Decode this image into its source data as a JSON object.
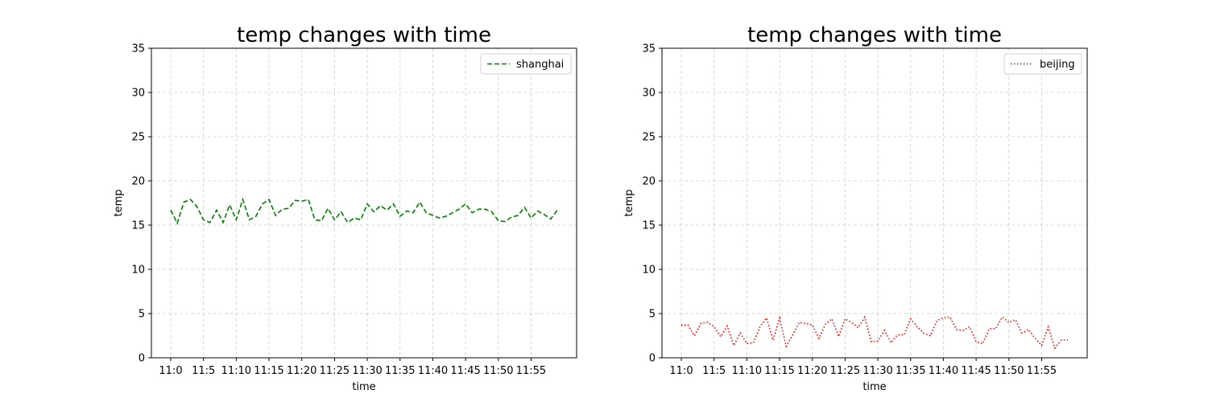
{
  "chart_data": [
    {
      "type": "line",
      "title": "temp changes with time",
      "xlabel": "time",
      "ylabel": "temp",
      "ylim": [
        0,
        35
      ],
      "y_ticks": [
        0,
        5,
        10,
        15,
        20,
        25,
        30,
        35
      ],
      "x_tick_labels": [
        "11:0",
        "11:5",
        "11:10",
        "11:15",
        "11:20",
        "11:25",
        "11:30",
        "11:35",
        "11:40",
        "11:45",
        "11:50",
        "11:55"
      ],
      "grid": true,
      "legend_position": "top-right",
      "series": [
        {
          "name": "shanghai",
          "color": "#008000",
          "line_style": "dashed",
          "x": [
            "11:0",
            "11:1",
            "11:2",
            "11:3",
            "11:4",
            "11:5",
            "11:6",
            "11:7",
            "11:8",
            "11:9",
            "11:10",
            "11:11",
            "11:12",
            "11:13",
            "11:14",
            "11:15",
            "11:16",
            "11:17",
            "11:18",
            "11:19",
            "11:20",
            "11:21",
            "11:22",
            "11:23",
            "11:24",
            "11:25",
            "11:26",
            "11:27",
            "11:28",
            "11:29",
            "11:30",
            "11:31",
            "11:32",
            "11:33",
            "11:34",
            "11:35",
            "11:36",
            "11:37",
            "11:38",
            "11:39",
            "11:40",
            "11:41",
            "11:42",
            "11:43",
            "11:44",
            "11:45",
            "11:46",
            "11:47",
            "11:48",
            "11:49",
            "11:50",
            "11:51",
            "11:52",
            "11:53",
            "11:54",
            "11:55",
            "11:56",
            "11:57",
            "11:58",
            "11:59"
          ],
          "values": [
            16.7,
            15.2,
            17.6,
            17.9,
            17.1,
            15.6,
            15.3,
            16.7,
            15.3,
            17.3,
            15.6,
            17.9,
            15.6,
            16.0,
            17.4,
            17.9,
            16.1,
            16.8,
            16.9,
            17.8,
            17.7,
            17.9,
            15.6,
            15.5,
            16.9,
            15.6,
            16.5,
            15.3,
            15.8,
            15.6,
            17.4,
            16.5,
            17.2,
            16.7,
            17.4,
            16.0,
            16.6,
            16.4,
            17.6,
            16.4,
            16.1,
            15.8,
            16.0,
            16.4,
            16.8,
            17.4,
            16.4,
            16.8,
            16.8,
            16.5,
            15.5,
            15.4,
            15.9,
            16.1,
            17.0,
            15.8,
            16.6,
            16.2,
            15.7,
            16.7
          ]
        }
      ]
    },
    {
      "type": "line",
      "title": "temp changes with time",
      "xlabel": "time",
      "ylabel": "temp",
      "ylim": [
        0,
        35
      ],
      "y_ticks": [
        0,
        5,
        10,
        15,
        20,
        25,
        30,
        35
      ],
      "x_tick_labels": [
        "11:0",
        "11:5",
        "11:10",
        "11:15",
        "11:20",
        "11:25",
        "11:30",
        "11:35",
        "11:40",
        "11:45",
        "11:50",
        "11:55"
      ],
      "grid": true,
      "legend_position": "top-right",
      "series": [
        {
          "name": "beijing",
          "color": "#ff0000",
          "line_style": "dotted",
          "x": [
            "11:0",
            "11:1",
            "11:2",
            "11:3",
            "11:4",
            "11:5",
            "11:6",
            "11:7",
            "11:8",
            "11:9",
            "11:10",
            "11:11",
            "11:12",
            "11:13",
            "11:14",
            "11:15",
            "11:16",
            "11:17",
            "11:18",
            "11:19",
            "11:20",
            "11:21",
            "11:22",
            "11:23",
            "11:24",
            "11:25",
            "11:26",
            "11:27",
            "11:28",
            "11:29",
            "11:30",
            "11:31",
            "11:32",
            "11:33",
            "11:34",
            "11:35",
            "11:36",
            "11:37",
            "11:38",
            "11:39",
            "11:40",
            "11:41",
            "11:42",
            "11:43",
            "11:44",
            "11:45",
            "11:46",
            "11:47",
            "11:48",
            "11:49",
            "11:50",
            "11:51",
            "11:52",
            "11:53",
            "11:54",
            "11:55",
            "11:56",
            "11:57",
            "11:58",
            "11:59"
          ],
          "values": [
            3.7,
            3.7,
            2.5,
            3.9,
            4.0,
            3.5,
            2.4,
            3.6,
            1.4,
            2.8,
            1.6,
            1.7,
            3.5,
            4.5,
            2.0,
            4.5,
            1.3,
            2.6,
            4.0,
            3.9,
            3.7,
            2.2,
            3.8,
            4.4,
            2.4,
            4.4,
            4.0,
            3.4,
            4.6,
            1.8,
            1.9,
            3.1,
            1.7,
            2.6,
            2.6,
            4.4,
            3.5,
            2.8,
            2.5,
            4.2,
            4.5,
            4.6,
            3.2,
            3.1,
            3.5,
            1.8,
            1.6,
            3.3,
            3.3,
            4.6,
            4.0,
            4.3,
            2.8,
            3.2,
            2.2,
            1.4,
            3.5,
            1.1,
            2.0,
            2.0
          ]
        }
      ]
    }
  ]
}
